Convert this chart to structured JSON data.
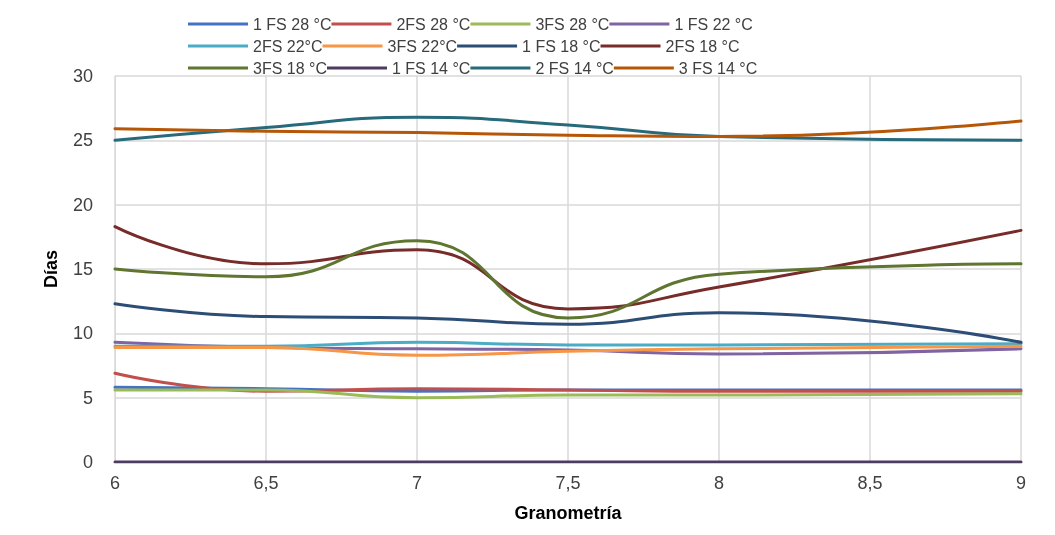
{
  "chart_data": {
    "type": "line",
    "xlabel": "Granometría",
    "ylabel": "Días",
    "x": [
      6,
      6.5,
      7,
      7.5,
      8,
      9
    ],
    "xlim": [
      6,
      9
    ],
    "xticks": [
      6,
      {
        "value": 6.5,
        "label": "6,5"
      },
      7,
      {
        "value": 7.5,
        "label": "7,5"
      },
      8,
      {
        "value": 8.5,
        "label": "8,5"
      },
      9
    ],
    "ylim": [
      0,
      30
    ],
    "yticks": [
      0,
      5,
      10,
      15,
      20,
      25,
      30
    ],
    "grid": true,
    "legend": "top",
    "marker": "none",
    "line_style": "solid",
    "series": [
      {
        "name": "1 FS 28 °C",
        "color": "#4472c4",
        "values": [
          5.8,
          5.7,
          5.5,
          5.6,
          5.6,
          5.6
        ]
      },
      {
        "name": "2FS 28 °C",
        "color": "#c0504d",
        "values": [
          6.9,
          5.5,
          5.7,
          5.6,
          5.5,
          5.5
        ]
      },
      {
        "name": "3FS 28 °C",
        "color": "#9bbb59",
        "values": [
          5.6,
          5.6,
          5.0,
          5.2,
          5.2,
          5.3
        ]
      },
      {
        "name": "1 FS 22 °C",
        "color": "#8064a2",
        "values": [
          9.3,
          8.9,
          8.8,
          8.7,
          8.4,
          8.8
        ]
      },
      {
        "name": "2FS 22°C",
        "color": "#4bacc6",
        "values": [
          9.0,
          9.0,
          9.3,
          9.1,
          9.1,
          9.2
        ]
      },
      {
        "name": "3FS 22°C",
        "color": "#f79646",
        "values": [
          8.9,
          8.9,
          8.3,
          8.6,
          8.8,
          9.0
        ]
      },
      {
        "name": "1 FS 18 °C",
        "color": "#2c4d75",
        "values": [
          12.3,
          11.3,
          11.2,
          10.7,
          11.6,
          9.3
        ]
      },
      {
        "name": "2FS 18 °C",
        "color": "#772c2a",
        "values": [
          18.3,
          15.4,
          16.5,
          11.9,
          13.6,
          18.0
        ]
      },
      {
        "name": "3FS 18 °C",
        "color": "#5f7530",
        "values": [
          15.0,
          14.4,
          17.2,
          11.2,
          14.6,
          15.4
        ]
      },
      {
        "name": "1 FS 14 °C",
        "color": "#4d3b62",
        "values": [
          0,
          0,
          0,
          0,
          0,
          0
        ]
      },
      {
        "name": "2 FS 14 °C",
        "color": "#276a7c",
        "values": [
          25.0,
          26.0,
          26.8,
          26.2,
          25.3,
          25.0
        ]
      },
      {
        "name": "3 FS 14 °C",
        "color": "#b65708",
        "values": [
          25.9,
          25.7,
          25.6,
          25.4,
          25.3,
          26.5
        ]
      }
    ]
  }
}
